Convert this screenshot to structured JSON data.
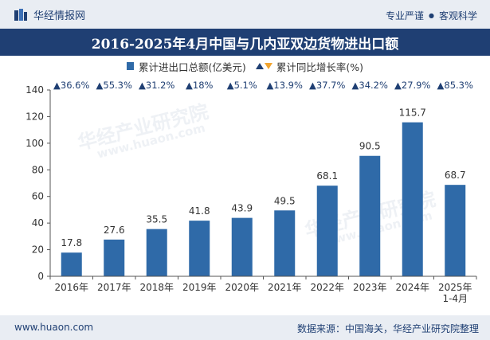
{
  "header": {
    "brand_name": "华经情报网",
    "slogan_left": "专业严谨",
    "slogan_dot": "●",
    "slogan_right": "客观科学"
  },
  "footer": {
    "url": "www.huaon.com",
    "source": "数据来源：中国海关，华经产业研究院整理"
  },
  "legend": {
    "bar_label": "累计进出口总额(亿美元)",
    "rate_label": "累计同比增长率(%)"
  },
  "watermark": {
    "text": "华经产业研究院",
    "url": "www.huaon.com"
  },
  "colors": {
    "bar": "#2f6aa8",
    "accent": "#1f3f73",
    "rate_down": "#f2a531"
  },
  "chart_data": {
    "type": "bar",
    "title": "2016-2025年4月中国与几内亚双边货物进出口额",
    "categories": [
      "2016年",
      "2017年",
      "2018年",
      "2019年",
      "2020年",
      "2021年",
      "2022年",
      "2023年",
      "2024年",
      "2025年\n1-4月"
    ],
    "series": [
      {
        "name": "累计进出口总额(亿美元)",
        "values": [
          17.8,
          27.6,
          35.5,
          41.8,
          43.9,
          49.5,
          68.1,
          90.5,
          115.7,
          68.7
        ]
      }
    ],
    "growth_rates": [
      "36.6%",
      "55.3%",
      "31.2%",
      "18%",
      "5.1%",
      "13.9%",
      "37.7%",
      "34.2%",
      "27.9%",
      "85.3%"
    ],
    "growth_rate_symbol": "▲",
    "xlabel": "",
    "ylabel": "",
    "ylim": [
      0,
      140
    ],
    "yticks": [
      0,
      20,
      40,
      60,
      80,
      100,
      120,
      140
    ],
    "grid": false,
    "legend_position": "top"
  }
}
